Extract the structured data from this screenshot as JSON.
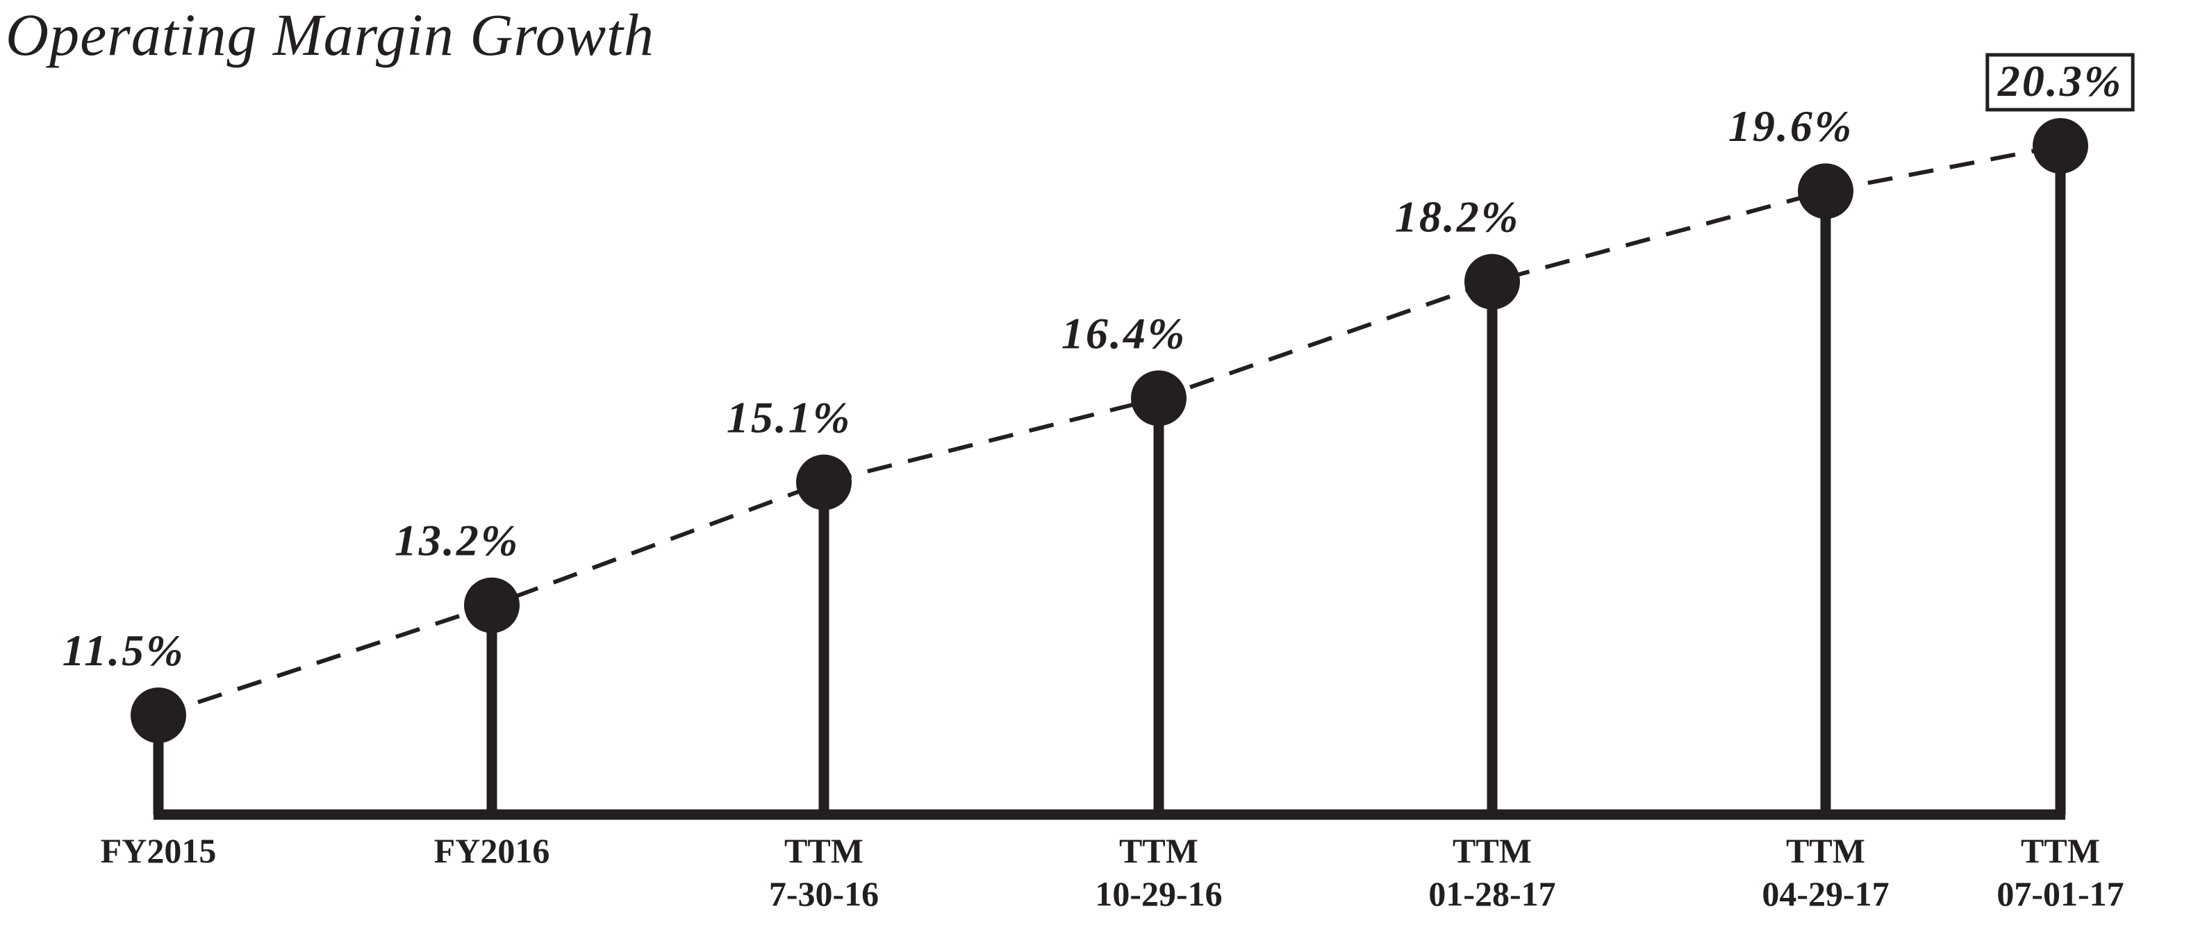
{
  "chart_data": {
    "type": "line",
    "title": "Operating Margin Growth",
    "xlabel": "",
    "ylabel": "",
    "ylim": [
      9,
      21
    ],
    "grid": false,
    "categories": [
      [
        "FY2015"
      ],
      [
        "FY2016"
      ],
      [
        "TTM",
        "7-30-16"
      ],
      [
        "TTM",
        "10-29-16"
      ],
      [
        "TTM",
        "01-28-17"
      ],
      [
        "TTM",
        "04-29-17"
      ],
      [
        "TTM",
        "07-01-17"
      ]
    ],
    "series": [
      {
        "name": "Operating Margin",
        "values": [
          11.5,
          13.2,
          15.1,
          16.4,
          18.2,
          19.6,
          20.3
        ],
        "labels": [
          "11.5%",
          "13.2%",
          "15.1%",
          "16.4%",
          "18.2%",
          "19.6%",
          "20.3%"
        ]
      }
    ],
    "highlighted_label_index": 6,
    "colors": {
      "ink": "#231f20",
      "background": "#ffffff"
    }
  }
}
